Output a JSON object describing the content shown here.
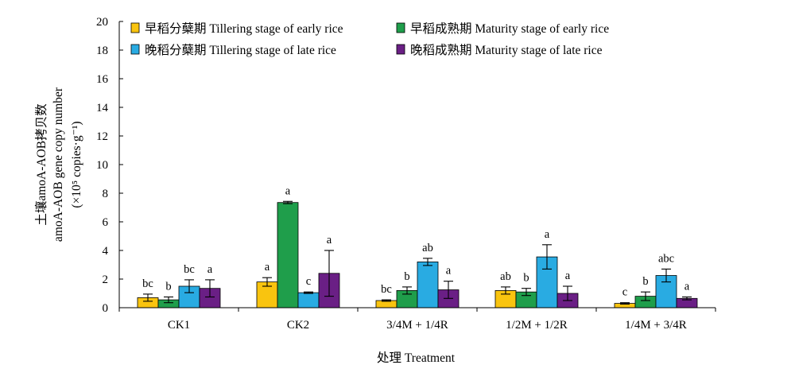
{
  "chart_data": {
    "type": "bar",
    "xlabel": "处理 Treatment",
    "ylabel_lines": [
      "土壤amoA-AOB拷贝数",
      "amoA-AOB gene copy number",
      "(×10⁵ copies·g⁻¹)"
    ],
    "ylim": [
      0,
      20
    ],
    "yticks": [
      0,
      2,
      4,
      6,
      8,
      10,
      12,
      14,
      16,
      18,
      20
    ],
    "grid": false,
    "legend_position": "top-inside",
    "categories": [
      "CK1",
      "CK2",
      "3/4M + 1/4R",
      "1/2M + 1/2R",
      "1/4M + 3/4R"
    ],
    "series": [
      {
        "name": "早稻分蘖期 Tillering stage of early rice",
        "color": "#F9C40F",
        "values": [
          0.7,
          1.8,
          0.5,
          1.2,
          0.3
        ],
        "errors": [
          0.25,
          0.3,
          0.05,
          0.25,
          0.05
        ],
        "labels": [
          "bc",
          "a",
          "bc",
          "ab",
          "c"
        ]
      },
      {
        "name": "早稻成熟期 Maturity stage of early rice",
        "color": "#1F9E4B",
        "values": [
          0.55,
          7.35,
          1.2,
          1.1,
          0.8
        ],
        "errors": [
          0.2,
          0.08,
          0.25,
          0.25,
          0.3
        ],
        "labels": [
          "b",
          "a",
          "b",
          "b",
          "b"
        ]
      },
      {
        "name": "晚稻分蘖期 Tillering stage of late rice",
        "color": "#29ABE2",
        "values": [
          1.5,
          1.05,
          3.2,
          3.55,
          2.25
        ],
        "errors": [
          0.45,
          0.05,
          0.25,
          0.85,
          0.45
        ],
        "labels": [
          "bc",
          "c",
          "ab",
          "a",
          "abc"
        ]
      },
      {
        "name": "晚稻成熟期 Maturity stage of late rice",
        "color": "#6A1F85",
        "values": [
          1.35,
          2.4,
          1.25,
          1.0,
          0.65
        ],
        "errors": [
          0.6,
          1.6,
          0.6,
          0.5,
          0.1
        ],
        "labels": [
          "a",
          "a",
          "a",
          "a",
          "a"
        ]
      }
    ]
  }
}
